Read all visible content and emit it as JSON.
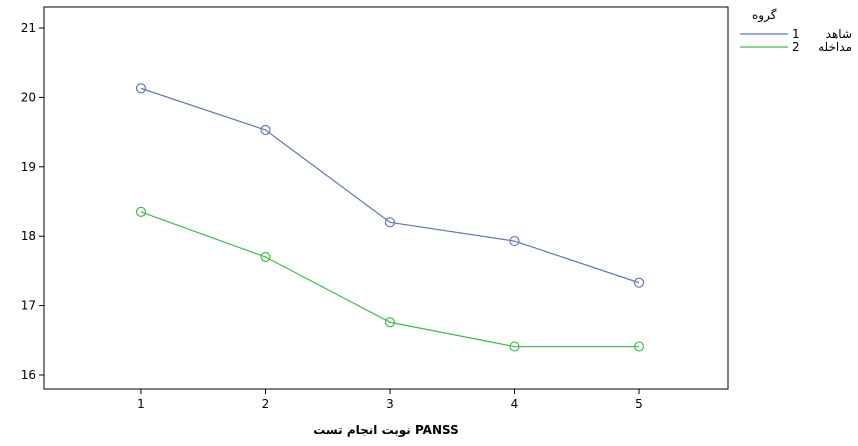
{
  "chart_data": {
    "type": "line",
    "xlabel": "نوبت انجام تست PANSS",
    "ylabel": "",
    "categories": [
      "1",
      "2",
      "3",
      "4",
      "5"
    ],
    "ylim": [
      15.7,
      21.3
    ],
    "yticks": [
      16,
      17,
      18,
      19,
      20,
      21
    ],
    "grid": false,
    "legend": {
      "title": "گروه",
      "placement": "top-right"
    },
    "series": [
      {
        "key": "1",
        "name": "شاهد",
        "color": "#5f77c0",
        "marker": "circle",
        "values": [
          20.13,
          19.53,
          18.2,
          17.93,
          17.33
        ]
      },
      {
        "key": "2",
        "name": "مداخله",
        "color": "#3dbd4a",
        "marker": "circle",
        "values": [
          18.35,
          17.7,
          16.76,
          16.41,
          16.41
        ]
      }
    ]
  }
}
